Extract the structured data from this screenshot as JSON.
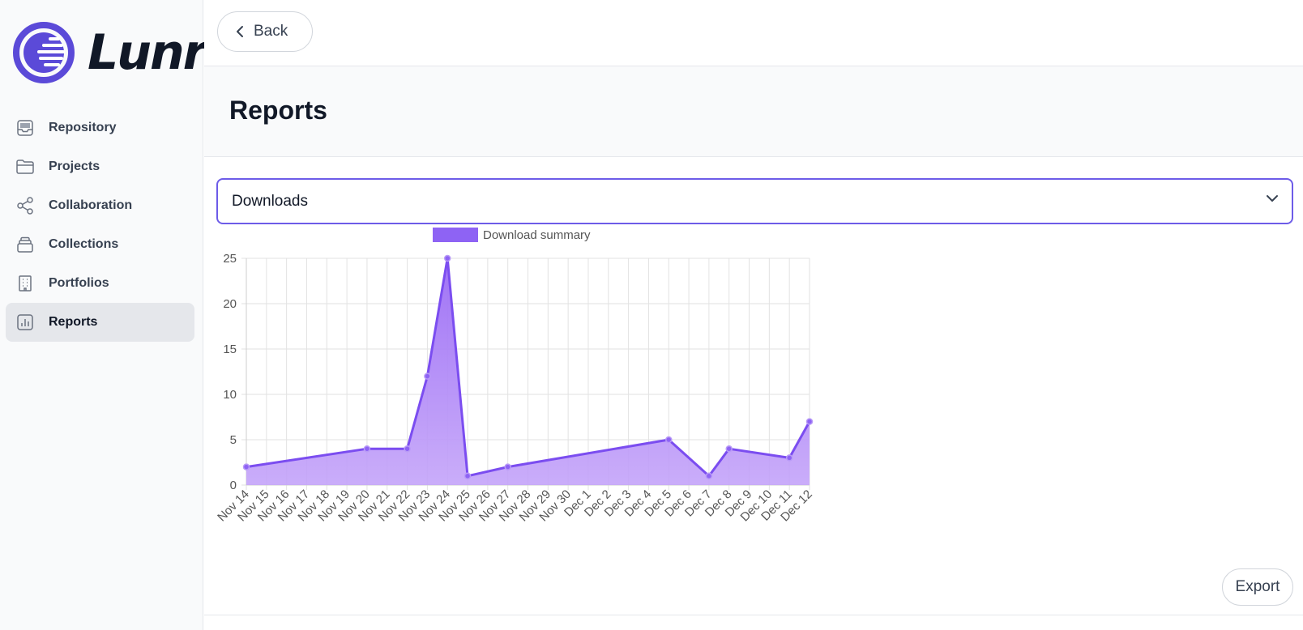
{
  "app": {
    "name": "Lunr"
  },
  "sidebar": {
    "items": [
      {
        "label": "Repository",
        "icon": "inbox-tray-icon"
      },
      {
        "label": "Projects",
        "icon": "folder-icon"
      },
      {
        "label": "Collaboration",
        "icon": "share-nodes-icon"
      },
      {
        "label": "Collections",
        "icon": "stack-icon"
      },
      {
        "label": "Portfolios",
        "icon": "building-icon"
      },
      {
        "label": "Reports",
        "icon": "bar-chart-icon",
        "active": true
      }
    ]
  },
  "topbar": {
    "back_label": "Back"
  },
  "page": {
    "title": "Reports"
  },
  "report_select": {
    "selected": "Downloads"
  },
  "actions": {
    "export_label": "Export"
  },
  "colors": {
    "accent": "#6d5ce8",
    "line": "#7b4df0",
    "fill": "#c4a4f9",
    "logo": "#5b4ad8"
  },
  "chart_data": {
    "type": "area",
    "title": "",
    "legend": "Download summary",
    "xlabel": "",
    "ylabel": "",
    "ylim": [
      0,
      25
    ],
    "yticks": [
      0,
      5,
      10,
      15,
      20,
      25
    ],
    "categories": [
      "Nov 14",
      "Nov 15",
      "Nov 16",
      "Nov 17",
      "Nov 18",
      "Nov 19",
      "Nov 20",
      "Nov 21",
      "Nov 22",
      "Nov 23",
      "Nov 24",
      "Nov 25",
      "Nov 26",
      "Nov 27",
      "Nov 28",
      "Nov 29",
      "Nov 30",
      "Dec 1",
      "Dec 2",
      "Dec 3",
      "Dec 4",
      "Dec 5",
      "Dec 6",
      "Dec 7",
      "Dec 8",
      "Dec 9",
      "Dec 10",
      "Dec 11",
      "Dec 12"
    ],
    "points": [
      {
        "x": "Nov 14",
        "y": 2
      },
      {
        "x": "Nov 20",
        "y": 4
      },
      {
        "x": "Nov 22",
        "y": 4
      },
      {
        "x": "Nov 23",
        "y": 12
      },
      {
        "x": "Nov 24",
        "y": 25
      },
      {
        "x": "Nov 25",
        "y": 1
      },
      {
        "x": "Nov 27",
        "y": 2
      },
      {
        "x": "Dec 5",
        "y": 5
      },
      {
        "x": "Dec 7",
        "y": 1
      },
      {
        "x": "Dec 8",
        "y": 4
      },
      {
        "x": "Dec 11",
        "y": 3
      },
      {
        "x": "Dec 12",
        "y": 7
      }
    ]
  }
}
